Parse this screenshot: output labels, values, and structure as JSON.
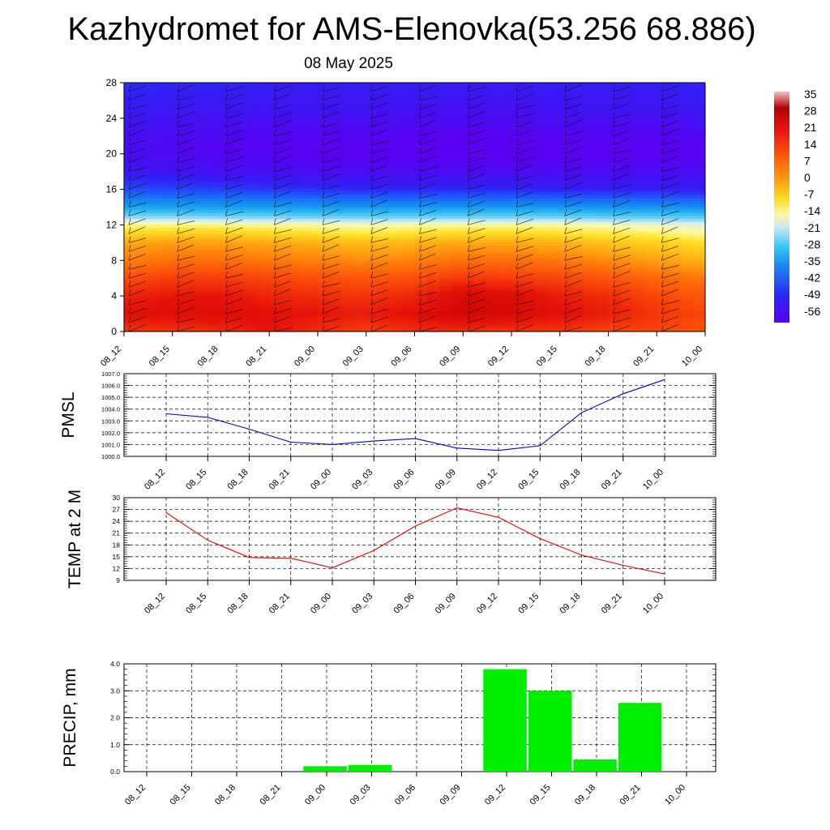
{
  "title": "Kazhydromet for AMS-Elenovka(53.256 68.886)",
  "subtitle": "08 May 2025",
  "chart_data": [
    {
      "type": "heatmap",
      "title": "",
      "x": [
        "08_12",
        "08_15",
        "08_18",
        "08_21",
        "09_00",
        "09_03",
        "09_06",
        "09_09",
        "09_12",
        "09_15",
        "09_18",
        "09_21",
        "10_00"
      ],
      "yticks": [
        0,
        4,
        8,
        12,
        16,
        20,
        24,
        28
      ],
      "ylim": [
        0,
        28
      ],
      "colorbar": {
        "labels": [
          "35",
          "28",
          "21",
          "14",
          "7",
          "0",
          "-7",
          "-14",
          "-21",
          "-28",
          "-35",
          "-42",
          "-49",
          "-56"
        ],
        "range": [
          -60,
          38
        ]
      },
      "levels": [
        0,
        2,
        4,
        6,
        8,
        10,
        11,
        12,
        13,
        14,
        16,
        18,
        20,
        22,
        24,
        26,
        28
      ],
      "values": [
        [
          14,
          14,
          15,
          18,
          15,
          13,
          15,
          15,
          14,
          14,
          12,
          12,
          10
        ],
        [
          19,
          20,
          20,
          19,
          18,
          17,
          19,
          22,
          21,
          19,
          17,
          14,
          12
        ],
        [
          16,
          18,
          18,
          16,
          15,
          14,
          16,
          21,
          20,
          17,
          15,
          12,
          10
        ],
        [
          11,
          13,
          13,
          12,
          11,
          10,
          11,
          14,
          13,
          12,
          10,
          8,
          6
        ],
        [
          5,
          7,
          7,
          6,
          5,
          4,
          5,
          7,
          7,
          6,
          4,
          2,
          0
        ],
        [
          1,
          2,
          2,
          1,
          0,
          -1,
          0,
          1,
          1,
          0,
          -2,
          -3,
          -5
        ],
        [
          -4,
          -3,
          -3,
          -4,
          -5,
          -6,
          -5,
          -4,
          -4,
          -5,
          -6,
          -7,
          -9
        ],
        [
          -8,
          -8,
          -8,
          -9,
          -9,
          -10,
          -9,
          -9,
          -9,
          -9,
          -10,
          -11,
          -12
        ],
        [
          -20,
          -20,
          -21,
          -21,
          -22,
          -22,
          -22,
          -22,
          -22,
          -22,
          -23,
          -23,
          -24
        ],
        [
          -32,
          -32,
          -33,
          -33,
          -34,
          -34,
          -34,
          -34,
          -34,
          -34,
          -35,
          -35,
          -36
        ],
        [
          -46,
          -47,
          -48,
          -49,
          -50,
          -51,
          -51,
          -51,
          -51,
          -52,
          -52,
          -52,
          -53
        ],
        [
          -54,
          -55,
          -56,
          -56,
          -57,
          -57,
          -57,
          -57,
          -57,
          -57,
          -57,
          -57,
          -57
        ],
        [
          -57,
          -58,
          -59,
          -59,
          -60,
          -60,
          -60,
          -61,
          -61,
          -60,
          -60,
          -60,
          -59
        ],
        [
          -56,
          -57,
          -58,
          -58,
          -59,
          -59,
          -59,
          -60,
          -60,
          -59,
          -59,
          -59,
          -58
        ],
        [
          -54,
          -55,
          -55,
          -56,
          -56,
          -56,
          -57,
          -57,
          -57,
          -56,
          -56,
          -56,
          -55
        ],
        [
          -52,
          -53,
          -53,
          -54,
          -54,
          -54,
          -54,
          -55,
          -55,
          -54,
          -54,
          -54,
          -53
        ],
        [
          -50,
          -51,
          -51,
          -52,
          -52,
          -52,
          -52,
          -53,
          -53,
          -52,
          -52,
          -52,
          -51
        ]
      ]
    },
    {
      "type": "line",
      "ylabel": "PMSL",
      "x": [
        "08_12",
        "08_15",
        "08_18",
        "08_21",
        "09_00",
        "09_03",
        "09_06",
        "09_09",
        "09_12",
        "09_15",
        "09_18",
        "09_21",
        "10_00"
      ],
      "ylim": [
        1000.0,
        1007.0
      ],
      "yticks": [
        "1000.0",
        "1001.0",
        "1002.0",
        "1003.0",
        "1004.0",
        "1005.0",
        "1006.0",
        "1007.0"
      ],
      "series": [
        {
          "color": "#0000cc",
          "values": [
            1003.6,
            1003.3,
            1002.3,
            1001.2,
            1001.0,
            1001.3,
            1001.5,
            1000.7,
            1000.5,
            1000.9,
            1003.7,
            1005.3,
            1006.5
          ]
        }
      ]
    },
    {
      "type": "line",
      "ylabel": "TEMP at 2 M",
      "x": [
        "08_12",
        "08_15",
        "08_18",
        "08_21",
        "09_00",
        "09_03",
        "09_06",
        "09_09",
        "09_12",
        "09_15",
        "09_18",
        "09_21",
        "10_00"
      ],
      "ylim": [
        9,
        30
      ],
      "yticks": [
        "9",
        "12",
        "15",
        "18",
        "21",
        "24",
        "27",
        "30"
      ],
      "series": [
        {
          "color": "#ee0000",
          "values": [
            26.2,
            19.2,
            14.8,
            14.6,
            12.2,
            16.6,
            22.8,
            27.4,
            25.0,
            19.6,
            15.4,
            12.8,
            10.6
          ]
        }
      ]
    },
    {
      "type": "bar",
      "ylabel": "PRECIP, mm",
      "x": [
        "08_12",
        "08_15",
        "08_18",
        "08_21",
        "09_00",
        "09_03",
        "09_06",
        "09_09",
        "09_12",
        "09_15",
        "09_18",
        "09_21",
        "10_00"
      ],
      "ylim": [
        0.0,
        4.0
      ],
      "yticks": [
        "0.0",
        "1.0",
        "2.0",
        "3.0",
        "4.0"
      ],
      "series": [
        {
          "color": "#00ee00",
          "values": [
            0,
            0,
            0,
            0,
            0.2,
            0.25,
            0,
            0,
            3.8,
            3.0,
            0.45,
            2.55,
            0
          ]
        }
      ]
    }
  ]
}
